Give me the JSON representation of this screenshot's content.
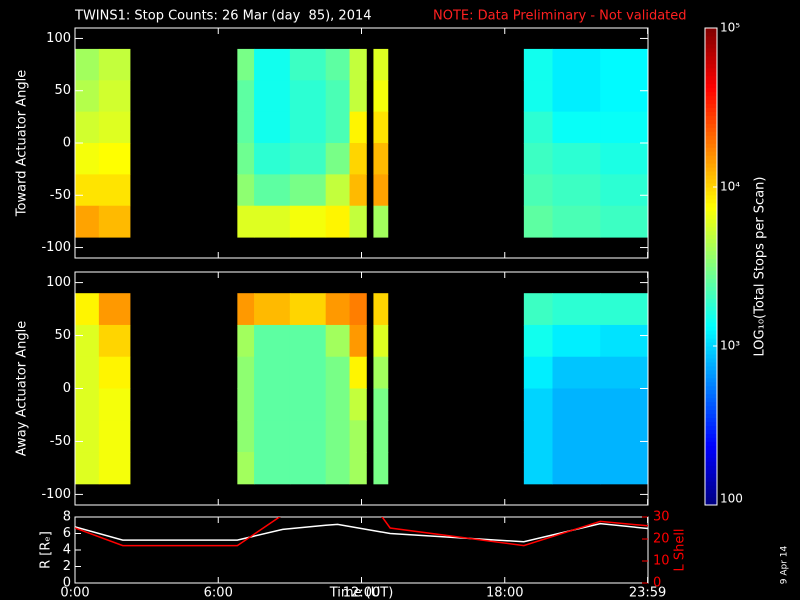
{
  "chart_data": [
    {
      "type": "heatmap",
      "title": "TWINS1: Stop Counts: 26 Mar (day  85), 2014",
      "subtitle": "NOTE: Data Preliminary - Not validated",
      "ylabel": "Toward Actuator Angle",
      "colormap": "jet",
      "zlog": true,
      "zlim": [
        100,
        100000
      ],
      "xlim": [
        0,
        24
      ],
      "ylim": [
        -110,
        110
      ],
      "yticks": [
        -100,
        -50,
        0,
        50,
        100
      ],
      "x_edges": [
        0,
        1,
        2.3,
        6.8,
        7.5,
        9,
        10.5,
        11.5,
        12.2,
        12.5,
        13.1,
        18.8,
        20,
        22,
        24
      ],
      "y_edges": [
        90,
        60,
        30,
        0,
        -30,
        -60,
        -90
      ],
      "z": [
        [
          4000,
          5000,
          null,
          3000,
          1500,
          2000,
          2500,
          5000,
          null,
          6000,
          null,
          1500,
          1200,
          1300
        ],
        [
          4500,
          5500,
          null,
          2500,
          1500,
          1800,
          2200,
          5000,
          null,
          7000,
          null,
          1500,
          1200,
          1300
        ],
        [
          5500,
          6000,
          null,
          2500,
          1500,
          1800,
          2200,
          8000,
          null,
          9000,
          null,
          1800,
          1400,
          1400
        ],
        [
          7000,
          7500,
          null,
          2800,
          1800,
          2000,
          3000,
          10000,
          null,
          12000,
          null,
          2000,
          1800,
          1600
        ],
        [
          9000,
          9000,
          null,
          3500,
          2500,
          3000,
          5000,
          12000,
          null,
          14000,
          null,
          2200,
          2000,
          1800
        ],
        [
          14000,
          12000,
          null,
          6000,
          6000,
          7000,
          8000,
          5000,
          null,
          4000,
          null,
          2500,
          2200,
          2000
        ]
      ]
    },
    {
      "type": "heatmap",
      "ylabel": "Away Actuator Angle",
      "colormap": "jet",
      "zlog": true,
      "zlim": [
        100,
        100000
      ],
      "xlim": [
        0,
        24
      ],
      "ylim": [
        -110,
        110
      ],
      "yticks": [
        -100,
        -50,
        0,
        50,
        100
      ],
      "x_edges": [
        0,
        1,
        2.3,
        6.8,
        7.5,
        9,
        10.5,
        11.5,
        12.2,
        12.5,
        13.1,
        18.8,
        20,
        22,
        24
      ],
      "y_edges": [
        90,
        60,
        30,
        0,
        -30,
        -60,
        -90
      ],
      "z": [
        [
          8000,
          15000,
          null,
          15000,
          12000,
          10000,
          15000,
          18000,
          null,
          10000,
          null,
          2000,
          1800,
          1800
        ],
        [
          6000,
          10000,
          null,
          4000,
          2500,
          2500,
          4000,
          15000,
          null,
          6000,
          null,
          1500,
          1200,
          1100
        ],
        [
          6000,
          8000,
          null,
          3500,
          2500,
          2500,
          3000,
          8000,
          null,
          4000,
          null,
          1200,
          900,
          900
        ],
        [
          6000,
          7000,
          null,
          3500,
          2500,
          2500,
          3000,
          5000,
          null,
          3000,
          null,
          1000,
          800,
          800
        ],
        [
          6000,
          7000,
          null,
          3500,
          2500,
          2500,
          3000,
          4000,
          null,
          3000,
          null,
          1000,
          800,
          800
        ],
        [
          6000,
          7000,
          null,
          4000,
          2500,
          2500,
          3000,
          4000,
          null,
          3000,
          null,
          1000,
          800,
          800
        ]
      ]
    },
    {
      "type": "line",
      "xlabel": "Time (UT)",
      "annotation": "9 Apr 14",
      "x": [
        0,
        2,
        6.8,
        8.7,
        10.5,
        11,
        12.8,
        13.2,
        18.8,
        22,
        24
      ],
      "xlim": [
        0,
        24
      ],
      "xticks": [
        {
          "value": 0,
          "label": "0:00"
        },
        {
          "value": 6,
          "label": "6:00"
        },
        {
          "value": 12,
          "label": "12:00"
        },
        {
          "value": 18,
          "label": "18:00"
        },
        {
          "value": 23.983,
          "label": "23:59"
        }
      ],
      "ylim": [
        0,
        8
      ],
      "yticks": [
        0,
        2,
        4,
        6,
        8
      ],
      "y2lim": [
        0,
        30
      ],
      "y2ticks": [
        0,
        10,
        20,
        30
      ],
      "series": [
        {
          "name": "R [Rₑ]",
          "color": "#ffffff",
          "values": [
            6.8,
            5.2,
            5.2,
            6.5,
            7,
            7.1,
            6.2,
            6,
            5,
            7.2,
            6.6
          ]
        },
        {
          "name": "L Shell",
          "color": "#ff0000",
          "axis": "y2",
          "values": [
            25,
            17,
            17,
            31,
            null,
            null,
            31,
            25,
            17,
            28,
            26
          ]
        }
      ]
    },
    {
      "type": "colorbar",
      "title": "LOG₁₀(Total Stops per Scan)",
      "colormap": "jet",
      "log": true,
      "lim": [
        100,
        100000
      ],
      "ticks": [
        100,
        {
          "value": 1000,
          "label": "10³"
        },
        {
          "value": 10000,
          "label": "10⁴"
        },
        {
          "value": 100000,
          "label": "10⁵"
        }
      ]
    }
  ]
}
